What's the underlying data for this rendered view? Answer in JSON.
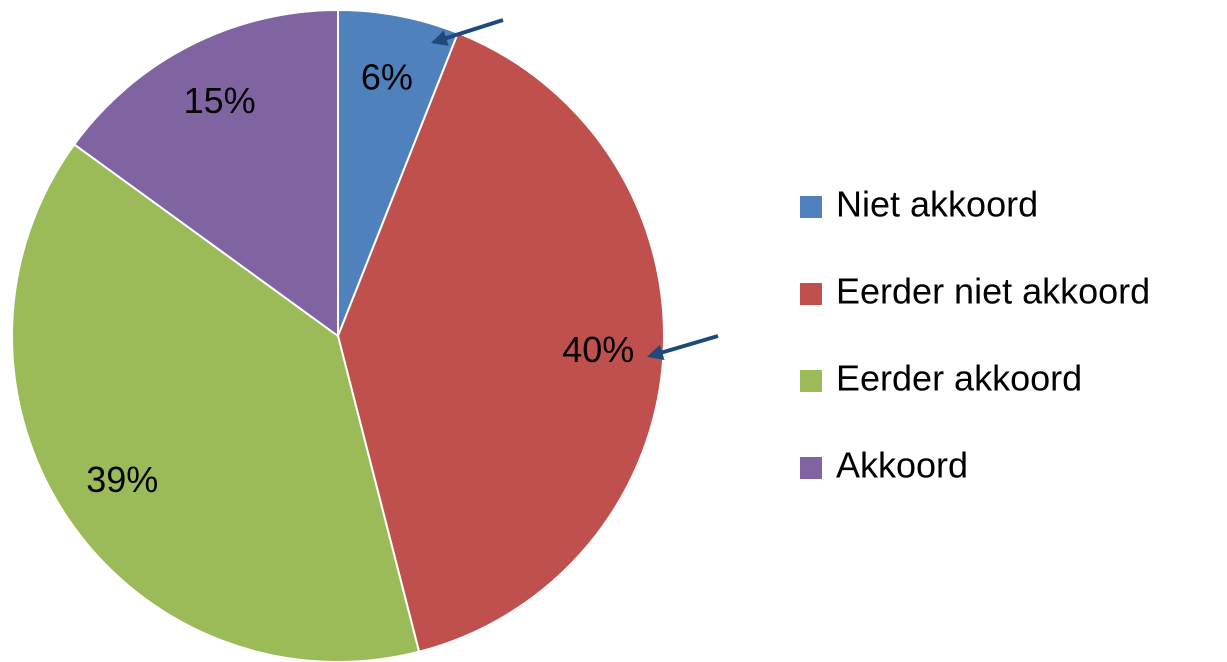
{
  "chart_data": {
    "type": "pie",
    "categories": [
      "Niet akkoord",
      "Eerder niet akkoord",
      "Eerder akkoord",
      "Akkoord"
    ],
    "values": [
      6,
      40,
      39,
      15
    ],
    "value_labels": [
      "6%",
      "40%",
      "39%",
      "15%"
    ],
    "colors": [
      "#4f81bd",
      "#c0504d",
      "#9bbb59",
      "#8064a2"
    ],
    "legend": "right"
  }
}
